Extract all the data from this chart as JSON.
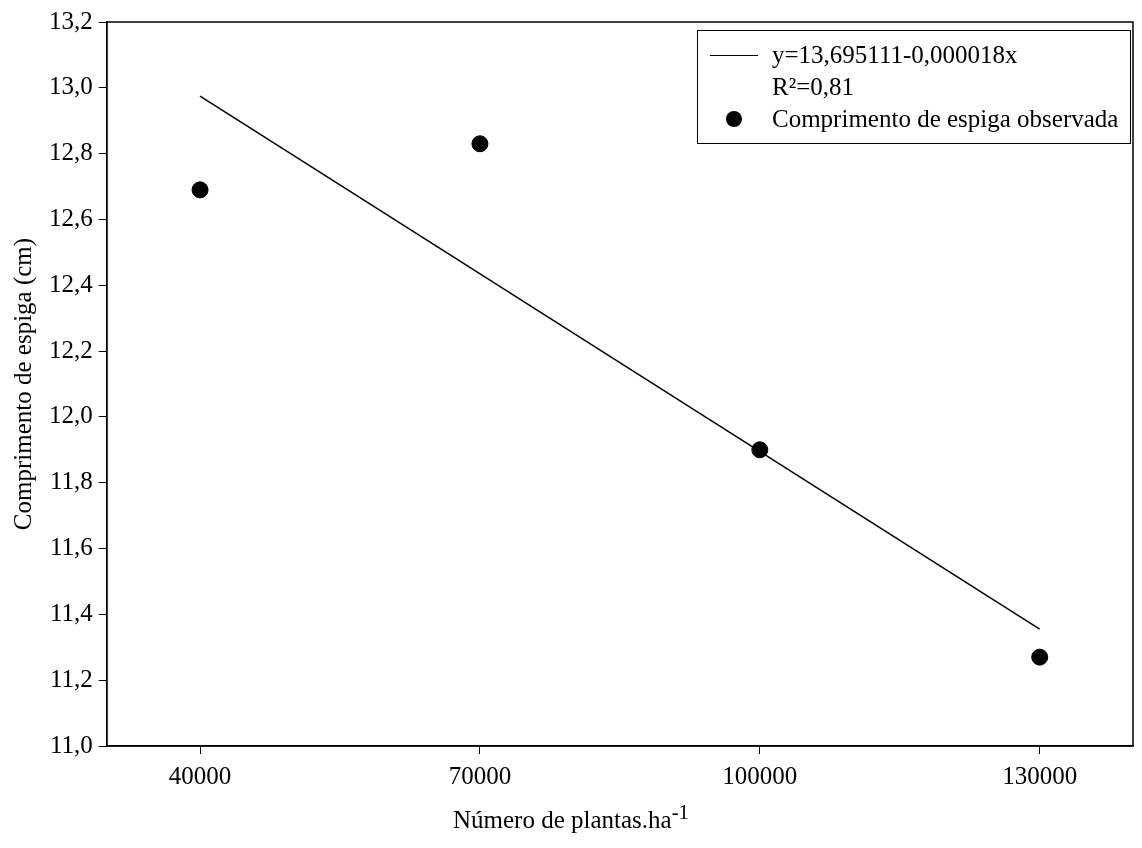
{
  "chart_data": {
    "type": "scatter",
    "xlabel": "Número de plantas.ha$^{-1}$",
    "ylabel": "Comprimento de espiga (cm)",
    "xlim": [
      30000,
      140000
    ],
    "xticks": [
      40000,
      70000,
      100000,
      130000
    ],
    "ylim": [
      11.0,
      13.2
    ],
    "yticks": [
      {
        "value": 11.0,
        "label": "11,0"
      },
      {
        "value": 11.2,
        "label": "11,2"
      },
      {
        "value": 11.4,
        "label": "11,4"
      },
      {
        "value": 11.6,
        "label": "11,6"
      },
      {
        "value": 11.8,
        "label": "11,8"
      },
      {
        "value": 12.0,
        "label": "12,0"
      },
      {
        "value": 12.2,
        "label": "12,2"
      },
      {
        "value": 12.4,
        "label": "12,4"
      },
      {
        "value": 12.6,
        "label": "12,6"
      },
      {
        "value": 12.8,
        "label": "12,8"
      },
      {
        "value": 13.0,
        "label": "13,0"
      },
      {
        "value": 13.2,
        "label": "13,2"
      }
    ],
    "series": [
      {
        "type": "line",
        "name": "y=13,695111-0,000018x",
        "color": "#000000",
        "marker": "none",
        "x": [
          40000,
          130000
        ],
        "values": [
          12.975,
          11.355
        ]
      },
      {
        "marker": "circle",
        "name": "Comprimento de espiga observada",
        "color": "#000000",
        "x": [
          40000,
          70000,
          100000,
          130000
        ],
        "values": [
          12.69,
          12.83,
          11.9,
          11.27
        ]
      }
    ],
    "annotations": [
      "R²=0,81"
    ],
    "legend": "top right",
    "line_style": "solid"
  }
}
